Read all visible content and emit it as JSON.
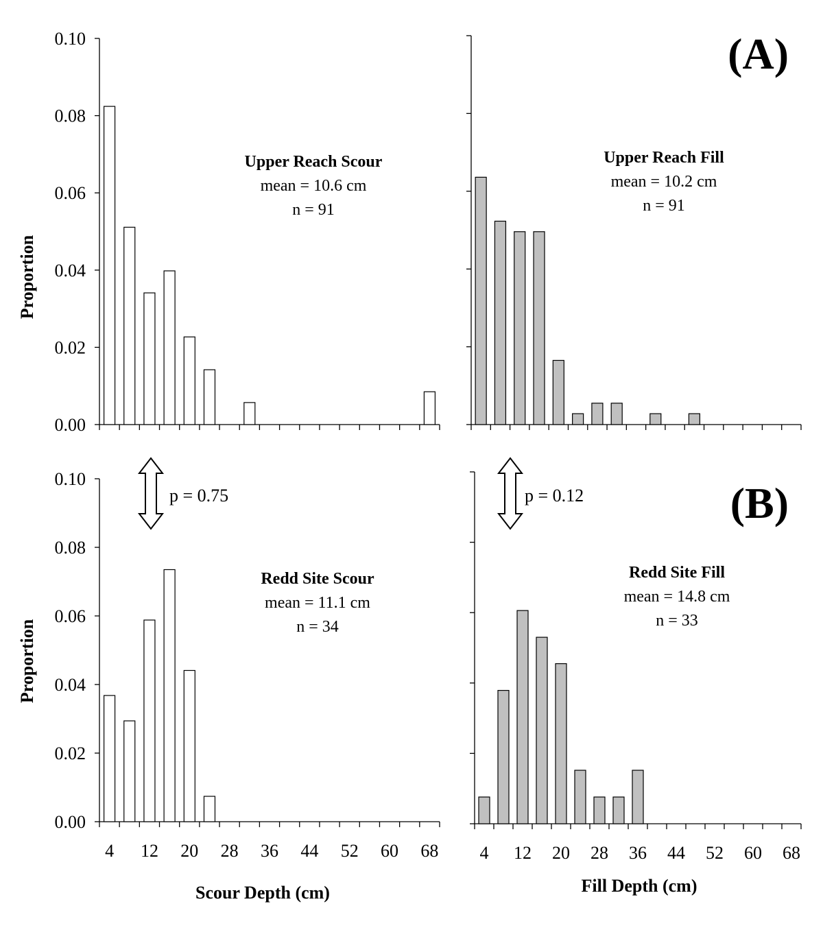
{
  "figure": {
    "panel_labels": [
      "(A)",
      "(B)"
    ],
    "p_values": [
      "p = 0.75",
      "p = 0.12"
    ],
    "colors": {
      "scour_fill": "#ffffff",
      "fill_fill": "#c0c0c0",
      "stroke": "#000000"
    }
  },
  "chart_data": [
    {
      "type": "bar",
      "title": "Upper Reach Scour",
      "stats": [
        "mean = 10.6 cm",
        "n = 91"
      ],
      "ylabel": "Proportion",
      "xlabel": "",
      "x": [
        4,
        8,
        12,
        16,
        20,
        24,
        28,
        32,
        36,
        40,
        44,
        48,
        52,
        56,
        60,
        64,
        68
      ],
      "values": [
        0.0824,
        0.0511,
        0.0341,
        0.0398,
        0.0227,
        0.0142,
        0,
        0.0057,
        0,
        0,
        0,
        0,
        0,
        0,
        0,
        0,
        0.0085
      ],
      "ylim": [
        0,
        0.1
      ],
      "yticks": [
        "0.00",
        "0.02",
        "0.04",
        "0.06",
        "0.08",
        "0.10"
      ],
      "xticks": [],
      "series_color": "#ffffff"
    },
    {
      "type": "bar",
      "title": "Upper Reach Fill",
      "stats": [
        "mean = 10.2 cm",
        "n = 91"
      ],
      "ylabel": "",
      "xlabel": "",
      "x": [
        4,
        8,
        12,
        16,
        20,
        24,
        28,
        32,
        36,
        40,
        44,
        48,
        52,
        56,
        60,
        64,
        68
      ],
      "values": [
        0.0636,
        0.0523,
        0.0496,
        0.0496,
        0.0165,
        0.0028,
        0.0055,
        0.0055,
        0,
        0.0028,
        0,
        0.0028,
        0,
        0,
        0,
        0,
        0
      ],
      "ylim": [
        0,
        0.1
      ],
      "yticks": [],
      "xticks": [],
      "series_color": "#c0c0c0"
    },
    {
      "type": "bar",
      "title": "Redd Site Scour",
      "stats": [
        "mean = 11.1 cm",
        "n = 34"
      ],
      "ylabel": "Proportion",
      "xlabel": "Scour Depth (cm)",
      "x": [
        4,
        8,
        12,
        16,
        20,
        24,
        28,
        32,
        36,
        40,
        44,
        48,
        52,
        56,
        60,
        64,
        68
      ],
      "values": [
        0.0368,
        0.0294,
        0.0588,
        0.0735,
        0.0441,
        0.0074,
        0,
        0,
        0,
        0,
        0,
        0,
        0,
        0,
        0,
        0,
        0
      ],
      "ylim": [
        0,
        0.1
      ],
      "yticks": [
        "0.00",
        "0.02",
        "0.04",
        "0.06",
        "0.08",
        "0.10"
      ],
      "xticks": [
        "4",
        "12",
        "20",
        "28",
        "36",
        "44",
        "52",
        "60",
        "68"
      ],
      "series_color": "#ffffff"
    },
    {
      "type": "bar",
      "title": "Redd Site Fill",
      "stats": [
        "mean = 14.8 cm",
        "n = 33"
      ],
      "ylabel": "",
      "xlabel": "Fill Depth (cm)",
      "x": [
        4,
        8,
        12,
        16,
        20,
        24,
        28,
        32,
        36,
        40,
        44,
        48,
        52,
        56,
        60,
        64,
        68
      ],
      "values": [
        0.0076,
        0.0379,
        0.0606,
        0.053,
        0.0455,
        0.0152,
        0.0076,
        0.0076,
        0.0152,
        0,
        0,
        0,
        0,
        0,
        0,
        0,
        0
      ],
      "ylim": [
        0,
        0.1
      ],
      "yticks": [],
      "xticks": [
        "4",
        "12",
        "20",
        "28",
        "36",
        "44",
        "52",
        "60",
        "68"
      ],
      "series_color": "#c0c0c0"
    }
  ]
}
